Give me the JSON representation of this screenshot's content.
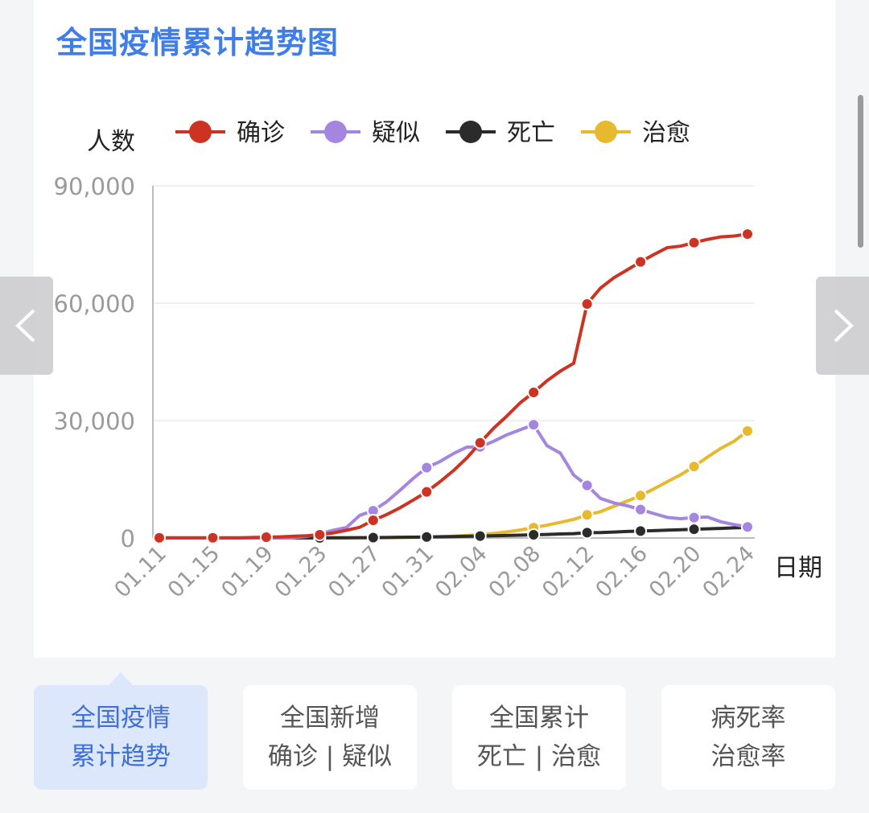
{
  "title": "全国疫情累计趋势图",
  "tabs": [
    {
      "line1": "全国疫情",
      "line2": "累计趋势",
      "active": true
    },
    {
      "line1": "全国新增",
      "line2": "确诊 | 疑似",
      "active": false
    },
    {
      "line1": "全国累计",
      "line2": "死亡 | 治愈",
      "active": false
    },
    {
      "line1": "病死率",
      "line2": "治愈率",
      "active": false
    }
  ],
  "colors": {
    "confirmed": "#cc3322",
    "suspected": "#a485e0",
    "deaths": "#2b2b2b",
    "recovered": "#e6b92e"
  },
  "chart_data": {
    "type": "line",
    "xlabel": "日期",
    "ylabel": "人数",
    "ylim": [
      0,
      90000
    ],
    "yticks": [
      0,
      30000,
      60000,
      90000
    ],
    "ytick_labels": [
      "0",
      "30,000",
      "60,000",
      "90,000"
    ],
    "grid": true,
    "legend_position": "top",
    "x_tick_labels": [
      "01.11",
      "01.15",
      "01.19",
      "01.23",
      "01.27",
      "01.31",
      "02.04",
      "02.08",
      "02.12",
      "02.16",
      "02.20",
      "02.24"
    ],
    "x": [
      "01.11",
      "01.12",
      "01.13",
      "01.14",
      "01.15",
      "01.16",
      "01.17",
      "01.18",
      "01.19",
      "01.20",
      "01.21",
      "01.22",
      "01.23",
      "01.24",
      "01.25",
      "01.26",
      "01.27",
      "01.28",
      "01.29",
      "01.30",
      "01.31",
      "02.01",
      "02.02",
      "02.03",
      "02.04",
      "02.05",
      "02.06",
      "02.07",
      "02.08",
      "02.09",
      "02.10",
      "02.11",
      "02.12",
      "02.13",
      "02.14",
      "02.15",
      "02.16",
      "02.17",
      "02.18",
      "02.19",
      "02.20",
      "02.21",
      "02.22",
      "02.23",
      "02.24"
    ],
    "series": [
      {
        "name": "确诊",
        "color": "#cc3322",
        "values": [
          41,
          41,
          41,
          41,
          41,
          45,
          62,
          121,
          198,
          291,
          440,
          571,
          830,
          1287,
          1975,
          2744,
          4515,
          5974,
          7711,
          9692,
          11791,
          14380,
          17205,
          20438,
          24324,
          28018,
          31161,
          34546,
          37198,
          40171,
          42638,
          44653,
          59804,
          63851,
          66492,
          68500,
          70548,
          72436,
          74185,
          74576,
          75465,
          76288,
          76936,
          77150,
          77658
        ]
      },
      {
        "name": "疑似",
        "color": "#a485e0",
        "values": [
          0,
          0,
          0,
          0,
          0,
          0,
          0,
          0,
          0,
          0,
          37,
          393,
          1072,
          1965,
          2684,
          5794,
          6973,
          9239,
          12167,
          15238,
          17988,
          19544,
          21558,
          23214,
          23260,
          24702,
          26359,
          27657,
          28942,
          23589,
          21675,
          16067,
          13435,
          10109,
          8969,
          8228,
          7264,
          6242,
          5248,
          4922,
          5206,
          5365,
          4148,
          3434,
          2824
        ]
      },
      {
        "name": "死亡",
        "color": "#2b2b2b",
        "values": [
          1,
          1,
          1,
          1,
          1,
          2,
          2,
          3,
          3,
          6,
          9,
          17,
          25,
          41,
          56,
          80,
          106,
          132,
          170,
          213,
          259,
          304,
          361,
          425,
          490,
          563,
          636,
          722,
          811,
          908,
          1016,
          1113,
          1367,
          1380,
          1523,
          1665,
          1770,
          1868,
          2004,
          2118,
          2236,
          2345,
          2442,
          2592,
          2663
        ]
      },
      {
        "name": "治愈",
        "color": "#e6b92e",
        "values": [
          0,
          0,
          0,
          0,
          0,
          0,
          0,
          0,
          0,
          25,
          25,
          28,
          34,
          38,
          49,
          51,
          60,
          103,
          124,
          171,
          243,
          328,
          475,
          632,
          892,
          1153,
          1540,
          2050,
          2649,
          3281,
          3996,
          4740,
          5911,
          6723,
          8096,
          9419,
          10844,
          12552,
          14376,
          16155,
          18264,
          20659,
          22888,
          24734,
          27323
        ]
      }
    ]
  }
}
